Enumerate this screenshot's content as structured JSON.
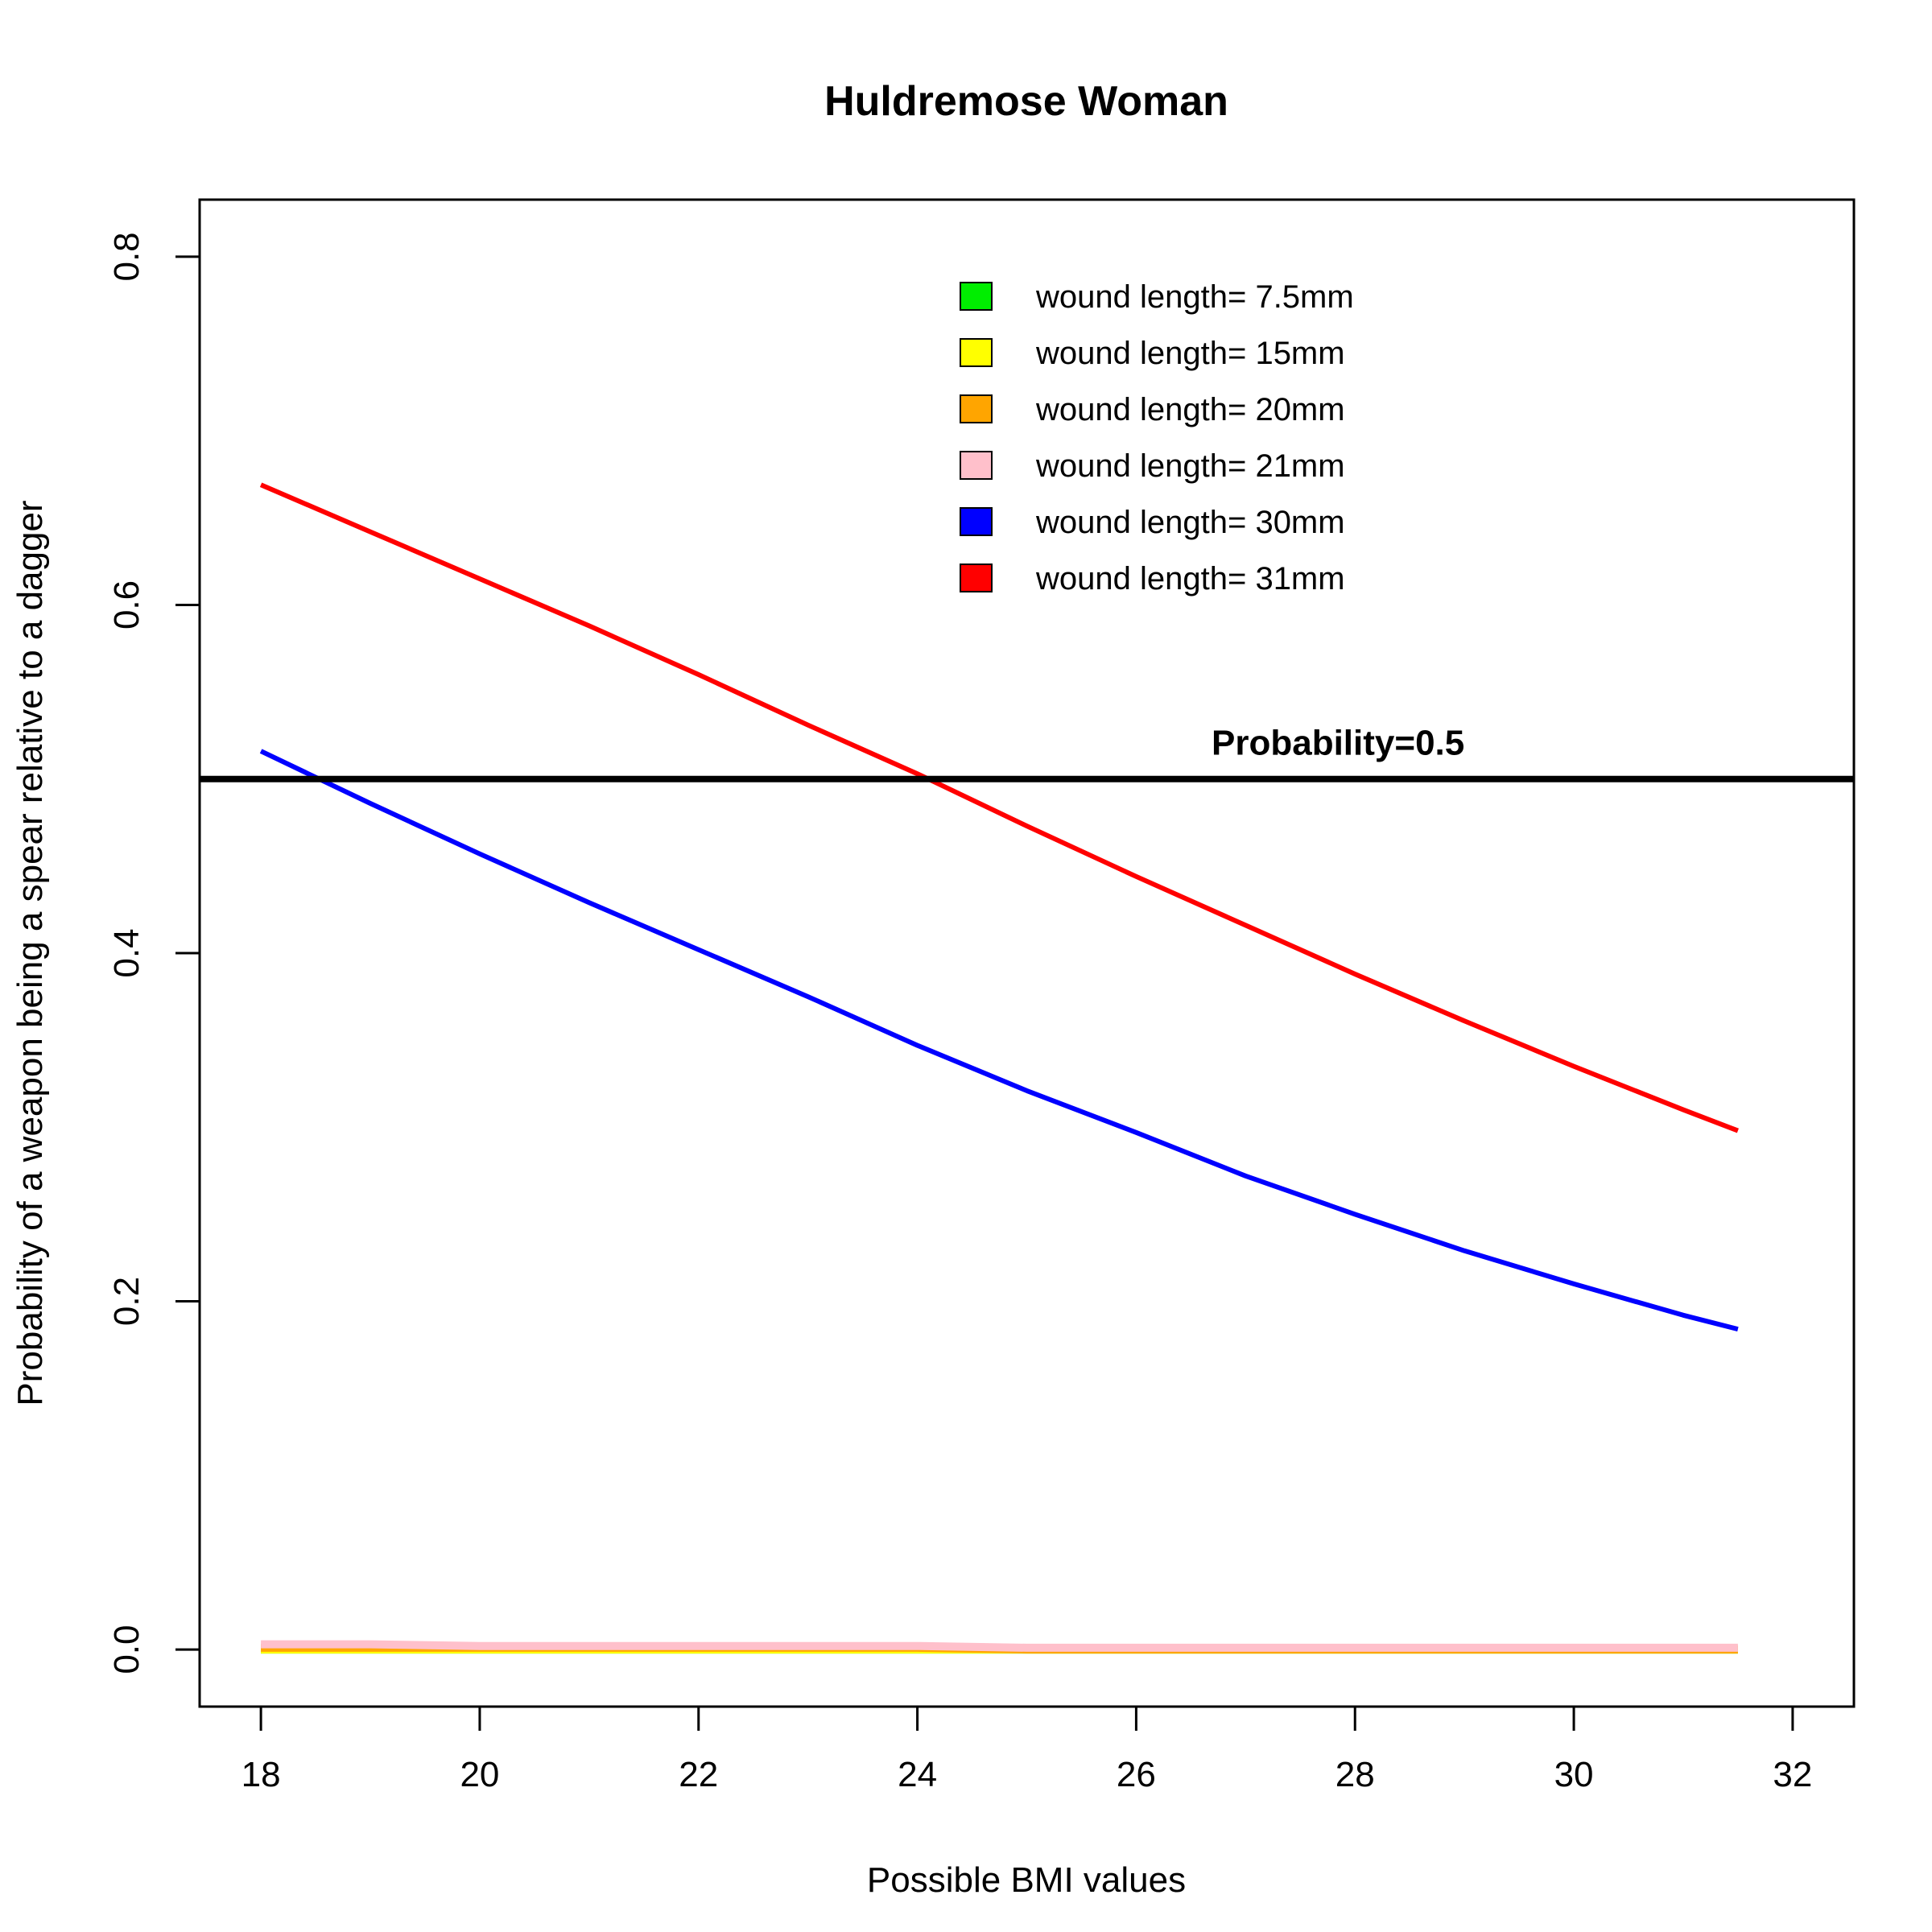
{
  "chart_data": {
    "type": "line",
    "title": "Huldremose Woman",
    "xlabel": "Possible BMI values",
    "ylabel": "Probability of a weapon being a spear relative to a dagger",
    "xlim": [
      17.44,
      32.56
    ],
    "ylim": [
      -0.0328,
      0.8328
    ],
    "xticks": [
      18,
      20,
      22,
      24,
      26,
      28,
      30,
      32
    ],
    "yticks": [
      0.0,
      0.2,
      0.4,
      0.6,
      0.8
    ],
    "xtick_labels": [
      "18",
      "20",
      "22",
      "24",
      "26",
      "28",
      "30",
      "32"
    ],
    "ytick_labels": [
      "0.0",
      "0.2",
      "0.4",
      "0.6",
      "0.8"
    ],
    "grid": false,
    "legend_position": "top-right",
    "reference_line": {
      "y": 0.5,
      "label": "Probability=0.5",
      "color": "#000000"
    },
    "x": [
      18,
      19,
      20,
      21,
      22,
      23,
      24,
      25,
      26,
      27,
      28,
      29,
      30,
      31,
      31.5
    ],
    "series": [
      {
        "name": "wound length= 7.5mm",
        "color": "#00ee00",
        "values": [
          0.0,
          0.0,
          0.0,
          0.0,
          0.0,
          0.0,
          0.0,
          0.0,
          0.0,
          0.0,
          0.0,
          0.0,
          0.0,
          0.0,
          0.0
        ]
      },
      {
        "name": "wound length= 15mm",
        "color": "#ffff00",
        "values": [
          0.0,
          0.0,
          0.0,
          0.0,
          0.0,
          0.0,
          0.0,
          0.0,
          0.0,
          0.0,
          0.0,
          0.0,
          0.0,
          0.0,
          0.0
        ]
      },
      {
        "name": "wound length= 20mm",
        "color": "#ffa500",
        "values": [
          0.001,
          0.001,
          0.001,
          0.001,
          0.001,
          0.001,
          0.001,
          0.0,
          0.0,
          0.0,
          0.0,
          0.0,
          0.0,
          0.0,
          0.0
        ]
      },
      {
        "name": "wound length= 21mm",
        "color": "#ffc0cb",
        "values": [
          0.003,
          0.003,
          0.002,
          0.002,
          0.002,
          0.002,
          0.002,
          0.001,
          0.001,
          0.001,
          0.001,
          0.001,
          0.001,
          0.001,
          0.001
        ]
      },
      {
        "name": "wound length= 30mm",
        "color": "#0000ff",
        "values": [
          0.516,
          0.486,
          0.457,
          0.429,
          0.402,
          0.375,
          0.347,
          0.321,
          0.297,
          0.272,
          0.25,
          0.229,
          0.21,
          0.192,
          0.184
        ]
      },
      {
        "name": "wound length= 31mm",
        "color": "#ff0000",
        "values": [
          0.669,
          0.642,
          0.615,
          0.588,
          0.56,
          0.531,
          0.503,
          0.473,
          0.444,
          0.416,
          0.388,
          0.361,
          0.335,
          0.31,
          0.298
        ]
      }
    ]
  }
}
